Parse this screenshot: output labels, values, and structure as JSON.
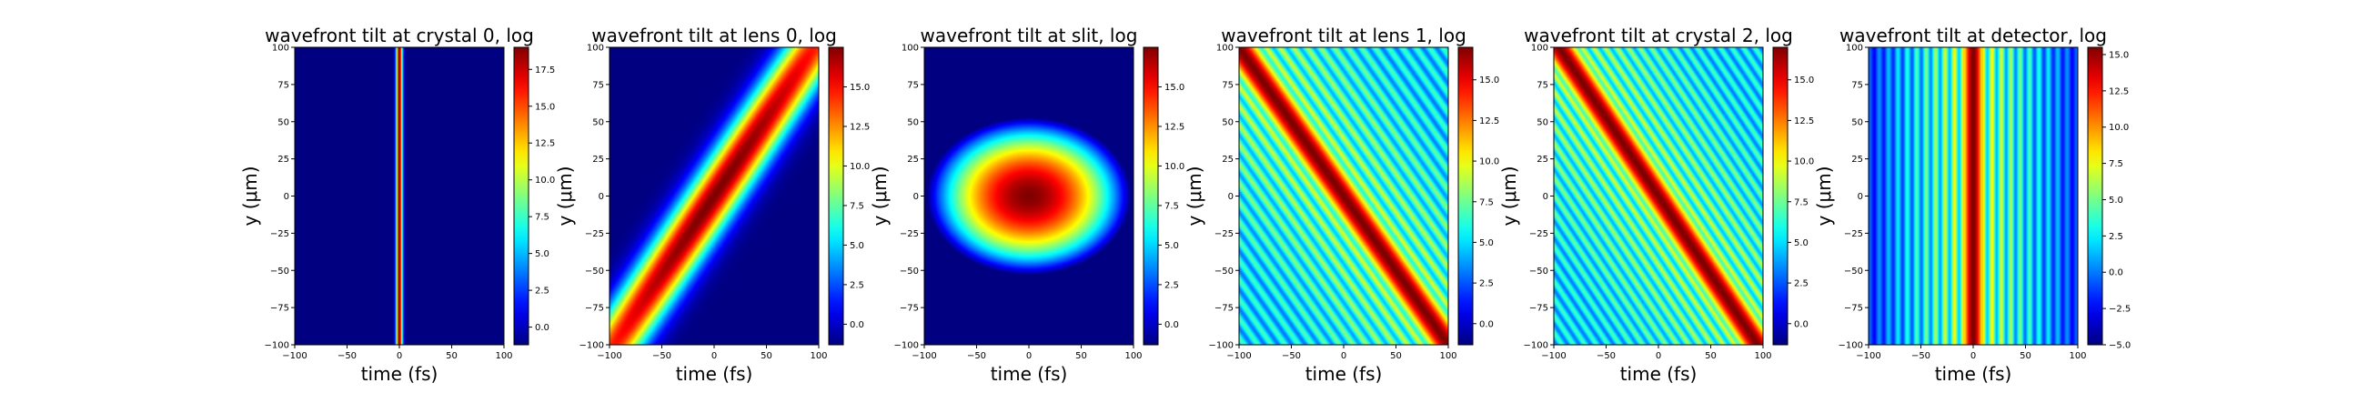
{
  "figure": {
    "colormap": "jet",
    "xlabel": "time (fs)",
    "ylabel": "y (μm)"
  },
  "chart_data": [
    {
      "type": "heatmap",
      "title": "wavefront tilt at crystal 0, log",
      "xlabel": "time (fs)",
      "ylabel": "y (μm)",
      "xlim": [
        -100,
        100
      ],
      "ylim": [
        -100,
        100
      ],
      "xticks": [
        -100,
        -50,
        0,
        50,
        100
      ],
      "yticks": [
        100,
        75,
        50,
        25,
        0,
        -25,
        -50,
        -75,
        -100
      ],
      "colorbar": {
        "min": -1.2,
        "max": 19.0,
        "ticks": [
          0.0,
          2.5,
          5.0,
          7.5,
          10.0,
          12.5,
          15.0,
          17.5
        ]
      },
      "pattern": "vertical-stripe",
      "params": {
        "center_fs": 0,
        "width_fs": 3
      }
    },
    {
      "type": "heatmap",
      "title": "wavefront tilt at lens 0, log",
      "xlabel": "time (fs)",
      "ylabel": "y (μm)",
      "xlim": [
        -100,
        100
      ],
      "ylim": [
        -100,
        100
      ],
      "xticks": [
        -100,
        -50,
        0,
        50,
        100
      ],
      "yticks": [
        100,
        75,
        50,
        25,
        0,
        -25,
        -50,
        -75,
        -100
      ],
      "colorbar": {
        "min": -1.3,
        "max": 17.5,
        "ticks": [
          0.0,
          2.5,
          5.0,
          7.5,
          10.0,
          12.5,
          15.0
        ]
      },
      "pattern": "tilted-gaussian",
      "params": {
        "slope_fs_per_um": 0.95,
        "width_fs": 28,
        "y_extent_um": 160
      }
    },
    {
      "type": "heatmap",
      "title": "wavefront tilt at slit, log",
      "xlabel": "time (fs)",
      "ylabel": "y (μm)",
      "xlim": [
        -100,
        100
      ],
      "ylim": [
        -100,
        100
      ],
      "xticks": [
        -100,
        -50,
        0,
        50,
        100
      ],
      "yticks": [
        100,
        75,
        50,
        25,
        0,
        -25,
        -50,
        -75,
        -100
      ],
      "colorbar": {
        "min": -1.3,
        "max": 17.5,
        "ticks": [
          0.0,
          2.5,
          5.0,
          7.5,
          10.0,
          12.5,
          15.0
        ]
      },
      "pattern": "ellipse",
      "params": {
        "width_fs": 70,
        "height_um": 38
      }
    },
    {
      "type": "heatmap",
      "title": "wavefront tilt at lens 1, log",
      "xlabel": "time (fs)",
      "ylabel": "y (μm)",
      "xlim": [
        -100,
        100
      ],
      "ylim": [
        -100,
        100
      ],
      "xticks": [
        -100,
        -50,
        0,
        50,
        100
      ],
      "yticks": [
        100,
        75,
        50,
        25,
        0,
        -25,
        -50,
        -75,
        -100
      ],
      "colorbar": {
        "min": -1.3,
        "max": 17.0,
        "ticks": [
          0.0,
          2.5,
          5.0,
          7.5,
          10.0,
          12.5,
          15.0
        ]
      },
      "pattern": "tilted-fringes",
      "params": {
        "slope_fs_per_um": -1.0,
        "width_fs": 22,
        "fringe_period_fs": 13
      }
    },
    {
      "type": "heatmap",
      "title": "wavefront tilt at crystal 2, log",
      "xlabel": "time (fs)",
      "ylabel": "y (μm)",
      "xlim": [
        -100,
        100
      ],
      "ylim": [
        -100,
        100
      ],
      "xticks": [
        -100,
        -50,
        0,
        50,
        100
      ],
      "yticks": [
        100,
        75,
        50,
        25,
        0,
        -25,
        -50,
        -75,
        -100
      ],
      "colorbar": {
        "min": -1.3,
        "max": 17.0,
        "ticks": [
          0.0,
          2.5,
          5.0,
          7.5,
          10.0,
          12.5,
          15.0
        ]
      },
      "pattern": "tilted-fringes",
      "params": {
        "slope_fs_per_um": -0.95,
        "width_fs": 20,
        "fringe_period_fs": 11
      }
    },
    {
      "type": "heatmap",
      "title": "wavefront tilt at detector, log",
      "xlabel": "time (fs)",
      "ylabel": "y (μm)",
      "xlim": [
        -100,
        100
      ],
      "ylim": [
        -100,
        100
      ],
      "xticks": [
        -100,
        -50,
        0,
        50,
        100
      ],
      "yticks": [
        100,
        75,
        50,
        25,
        0,
        -25,
        -50,
        -75,
        -100
      ],
      "colorbar": {
        "min": -5.0,
        "max": 15.5,
        "ticks": [
          -5.0,
          -2.5,
          0.0,
          2.5,
          5.0,
          7.5,
          10.0,
          12.5,
          15.0
        ]
      },
      "pattern": "vertical-fringes",
      "params": {
        "center_fs": 0,
        "width_fs": 12,
        "fringe_period_fs": 9
      }
    }
  ]
}
